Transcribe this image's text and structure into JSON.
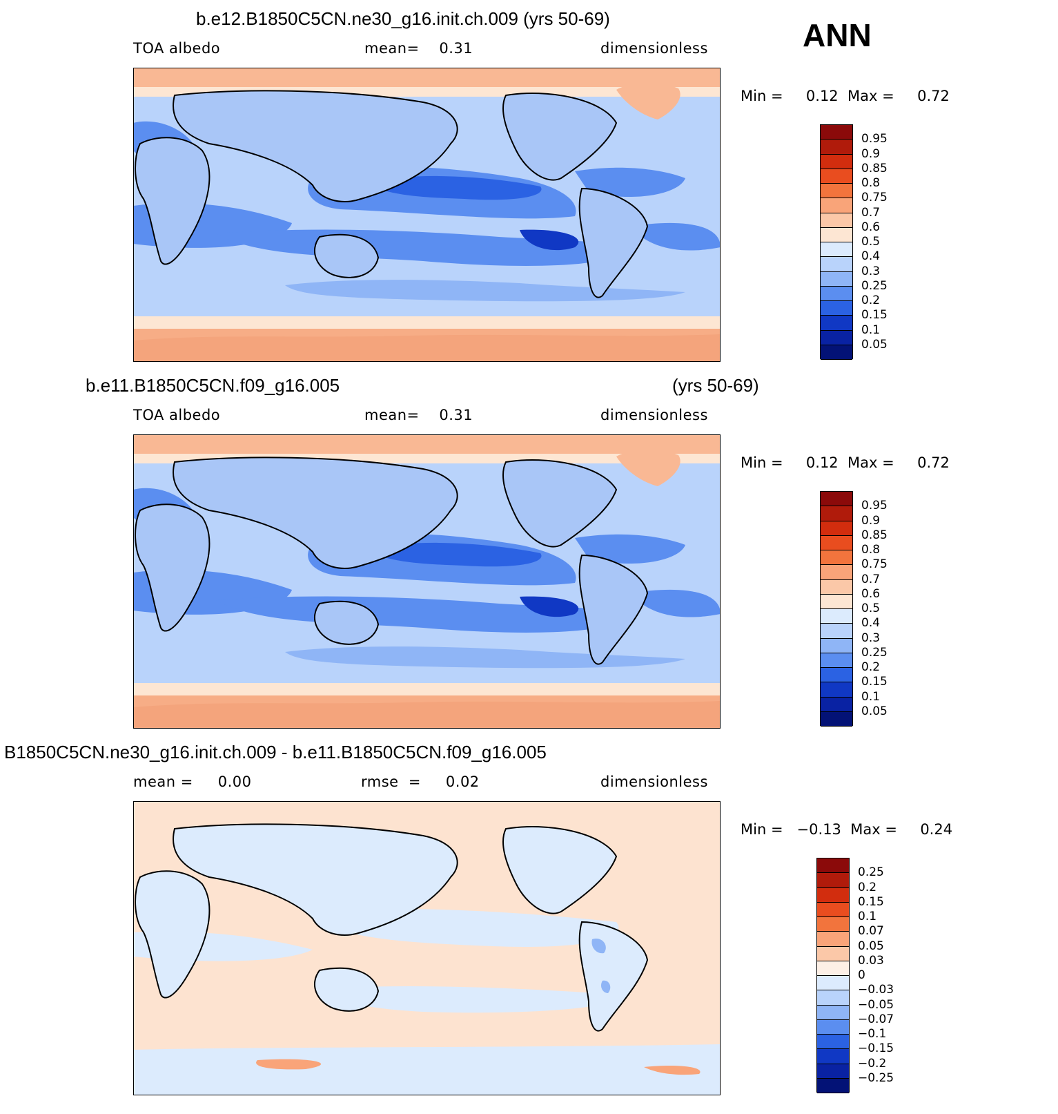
{
  "season": "ANN",
  "colors": {
    "blue_dark": "#001a8c",
    "blue_mid": "#2f6fe8",
    "blue_light": "#a9c6f7",
    "blue_pale": "#d6e6fb",
    "cream": "#fde3d0",
    "salmon": "#f7b08a",
    "coast": "#000000"
  },
  "panels": [
    {
      "title": "b.e12.B1850C5CN.ne30_g16.init.ch.009 (yrs 50-69)",
      "title_right": "",
      "left_label": "TOA albedo",
      "mid_label": "mean=    0.31",
      "right_label": "dimensionless",
      "minmax": "Min =     0.12  Max =     0.72",
      "colorbar_labels": [
        "0.95",
        "0.9",
        "0.85",
        "0.8",
        "0.75",
        "0.7",
        "0.6",
        "0.5",
        "0.4",
        "0.3",
        "0.25",
        "0.2",
        "0.15",
        "0.1",
        "0.05"
      ],
      "colorbar_colors": [
        "#8b0a0a",
        "#b01b0b",
        "#d22d0e",
        "#e94d1f",
        "#f2743d",
        "#f9a479",
        "#fbc8a8",
        "#fde6d3",
        "#dcebfd",
        "#b9d3fb",
        "#8fb5f6",
        "#5b8ef0",
        "#2b62e3",
        "#1038c4",
        "#0922a3",
        "#031276"
      ]
    },
    {
      "title": "b.e11.B1850C5CN.f09_g16.005",
      "title_right": "(yrs 50-69)",
      "left_label": "TOA albedo",
      "mid_label": "mean=    0.31",
      "right_label": "dimensionless",
      "minmax": "Min =     0.12  Max =     0.72",
      "colorbar_labels": [
        "0.95",
        "0.9",
        "0.85",
        "0.8",
        "0.75",
        "0.7",
        "0.6",
        "0.5",
        "0.4",
        "0.3",
        "0.25",
        "0.2",
        "0.15",
        "0.1",
        "0.05"
      ],
      "colorbar_colors": [
        "#8b0a0a",
        "#b01b0b",
        "#d22d0e",
        "#e94d1f",
        "#f2743d",
        "#f9a479",
        "#fbc8a8",
        "#fde6d3",
        "#dcebfd",
        "#b9d3fb",
        "#8fb5f6",
        "#5b8ef0",
        "#2b62e3",
        "#1038c4",
        "#0922a3",
        "#031276"
      ]
    },
    {
      "title": "B1850C5CN.ne30_g16.init.ch.009 - b.e11.B1850C5CN.f09_g16.005",
      "title_right": "",
      "left_label": "mean =     0.00",
      "mid_label": "rmse  =     0.02",
      "right_label": "dimensionless",
      "minmax": "Min =   −0.13  Max =     0.24",
      "colorbar_labels": [
        "0.25",
        "0.2",
        "0.15",
        "0.1",
        "0.07",
        "0.05",
        "0.03",
        "0",
        "−0.03",
        "−0.05",
        "−0.07",
        "−0.1",
        "−0.15",
        "−0.2",
        "−0.25"
      ],
      "colorbar_colors": [
        "#8b0a0a",
        "#b01b0b",
        "#d22d0e",
        "#e94d1f",
        "#f2743d",
        "#f9a479",
        "#fbc8a8",
        "#fdf0e6",
        "#dcebfd",
        "#b9d3fb",
        "#8fb5f6",
        "#5b8ef0",
        "#2b62e3",
        "#1038c4",
        "#0922a3",
        "#031276"
      ]
    }
  ]
}
